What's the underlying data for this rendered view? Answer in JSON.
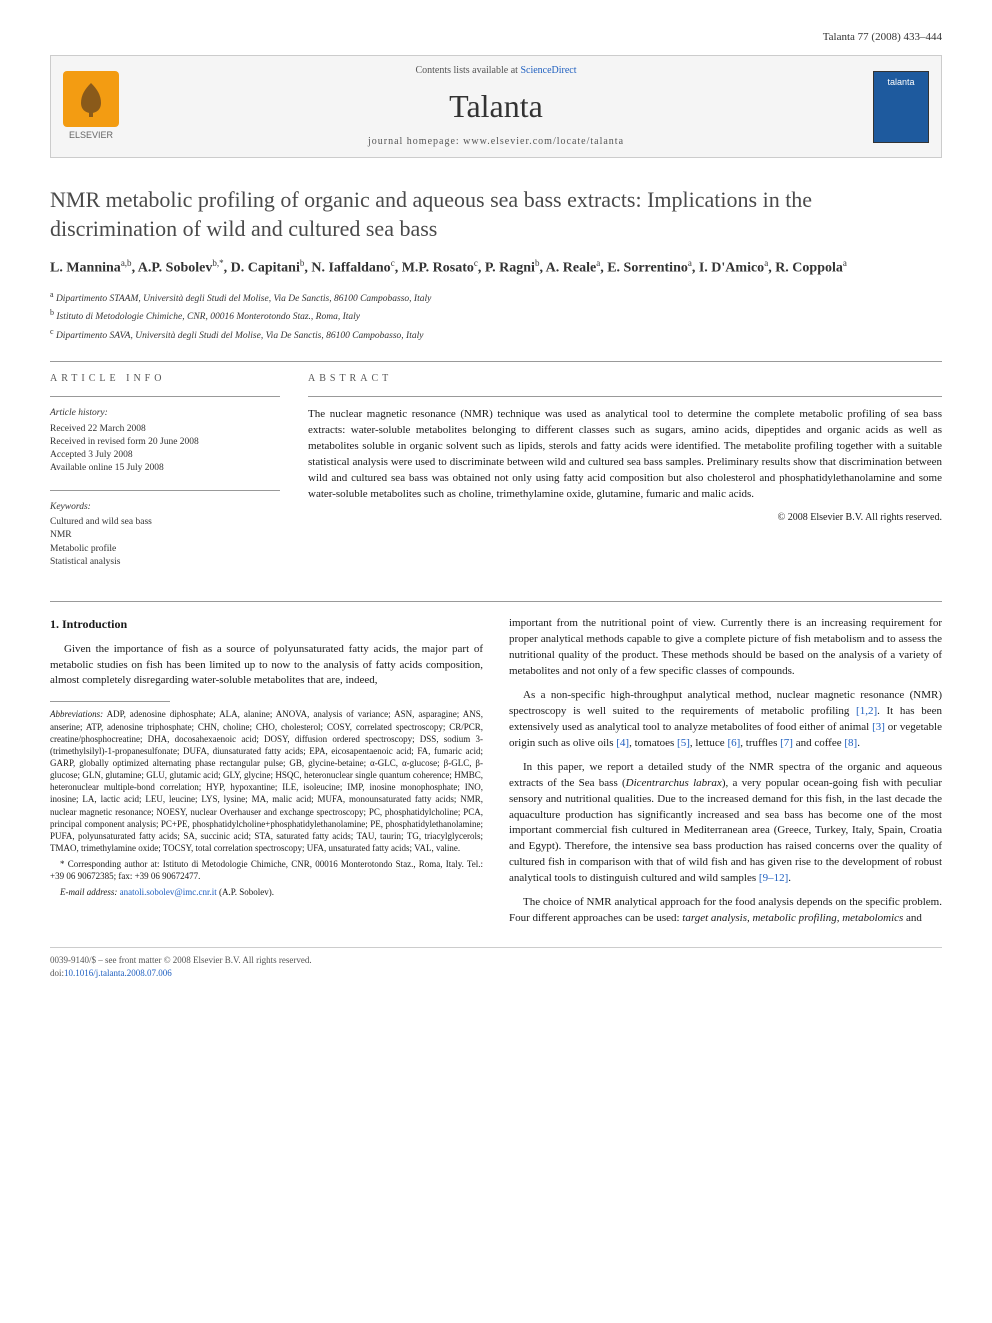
{
  "page_header": "Talanta 77 (2008) 433–444",
  "banner": {
    "publisher": "ELSEVIER",
    "contents_prefix": "Contents lists available at ",
    "contents_link": "ScienceDirect",
    "journal": "Talanta",
    "homepage_prefix": "journal homepage: ",
    "homepage": "www.elsevier.com/locate/talanta",
    "cover_label": "talanta"
  },
  "title": "NMR metabolic profiling of organic and aqueous sea bass extracts: Implications in the discrimination of wild and cultured sea bass",
  "authors_html": "L. Mannina<sup>a,b</sup>, A.P. Sobolev<sup>b,*</sup>, D. Capitani<sup>b</sup>, N. Iaffaldano<sup>c</sup>, M.P. Rosato<sup>c</sup>, P. Ragni<sup>b</sup>, A. Reale<sup>a</sup>, E. Sorrentino<sup>a</sup>, I. D'Amico<sup>a</sup>, R. Coppola<sup>a</sup>",
  "affiliations": [
    {
      "sup": "a",
      "text": "Dipartimento STAAM, Università degli Studi del Molise, Via De Sanctis, 86100 Campobasso, Italy"
    },
    {
      "sup": "b",
      "text": "Istituto di Metodologie Chimiche, CNR, 00016 Monterotondo Staz., Roma, Italy"
    },
    {
      "sup": "c",
      "text": "Dipartimento SAVA, Università degli Studi del Molise, Via De Sanctis, 86100 Campobasso, Italy"
    }
  ],
  "article_info": {
    "head": "ARTICLE INFO",
    "history_label": "Article history:",
    "history": [
      "Received 22 March 2008",
      "Received in revised form 20 June 2008",
      "Accepted 3 July 2008",
      "Available online 15 July 2008"
    ],
    "keywords_label": "Keywords:",
    "keywords": [
      "Cultured and wild sea bass",
      "NMR",
      "Metabolic profile",
      "Statistical analysis"
    ]
  },
  "abstract": {
    "head": "ABSTRACT",
    "text": "The nuclear magnetic resonance (NMR) technique was used as analytical tool to determine the complete metabolic profiling of sea bass extracts: water-soluble metabolites belonging to different classes such as sugars, amino acids, dipeptides and organic acids as well as metabolites soluble in organic solvent such as lipids, sterols and fatty acids were identified. The metabolite profiling together with a suitable statistical analysis were used to discriminate between wild and cultured sea bass samples. Preliminary results show that discrimination between wild and cultured sea bass was obtained not only using fatty acid composition but also cholesterol and phosphatidylethanolamine and some water-soluble metabolites such as choline, trimethylamine oxide, glutamine, fumaric and malic acids.",
    "copyright": "© 2008 Elsevier B.V. All rights reserved."
  },
  "body": {
    "intro_head": "1. Introduction",
    "p1": "Given the importance of fish as a source of polyunsaturated fatty acids, the major part of metabolic studies on fish has been limited up to now to the analysis of fatty acids composition, almost completely disregarding water-soluble metabolites that are, indeed,",
    "p2_a": "important from the nutritional point of view. Currently there is an increasing requirement for proper analytical methods capable to give a complete picture of fish metabolism and to assess the nutritional quality of the product. These methods should be based on the analysis of a variety of metabolites and not only of a few specific classes of compounds.",
    "p3_a": "As a non-specific high-throughput analytical method, nuclear magnetic resonance (NMR) spectroscopy is well suited to the requirements of metabolic profiling ",
    "p3_ref1": "[1,2]",
    "p3_b": ". It has been extensively used as analytical tool to analyze metabolites of food either of animal ",
    "p3_ref2": "[3]",
    "p3_c": " or vegetable origin such as olive oils ",
    "p3_ref3": "[4]",
    "p3_d": ", tomatoes ",
    "p3_ref4": "[5]",
    "p3_e": ", lettuce ",
    "p3_ref5": "[6]",
    "p3_f": ", truffles ",
    "p3_ref6": "[7]",
    "p3_g": " and coffee ",
    "p3_ref7": "[8]",
    "p3_h": ".",
    "p4_a": "In this paper, we report a detailed study of the NMR spectra of the organic and aqueous extracts of the Sea bass (",
    "p4_i": "Dicentrarchus labrax",
    "p4_b": "), a very popular ocean-going fish with peculiar sensory and nutritional qualities. Due to the increased demand for this fish, in the last decade the aquaculture production has significantly increased and sea bass has become one of the most important commercial fish cultured in Mediterranean area (Greece, Turkey, Italy, Spain, Croatia and Egypt). Therefore, the intensive sea bass production has raised concerns over the quality of cultured fish in comparison with that of wild fish and has given rise to the development of robust analytical tools to distinguish cultured and wild samples ",
    "p4_ref": "[9–12]",
    "p4_c": ".",
    "p5_a": "The choice of NMR analytical approach for the food analysis depends on the specific problem. Four different approaches can be used: ",
    "p5_i": "target analysis, metabolic profiling, metabolomics",
    "p5_b": " and"
  },
  "footnotes": {
    "abbrev_label": "Abbreviations:",
    "abbrev_text": " ADP, adenosine diphosphate; ALA, alanine; ANOVA, analysis of variance; ASN, asparagine; ANS, anserine; ATP, adenosine triphosphate; CHN, choline; CHO, cholesterol; COSY, correlated spectroscopy; CR/PCR, creatine/phosphocreatine; DHA, docosahexaenoic acid; DOSY, diffusion ordered spectroscopy; DSS, sodium 3-(trimethylsilyl)-1-propanesulfonate; DUFA, diunsaturated fatty acids; EPA, eicosapentaenoic acid; FA, fumaric acid; GARP, globally optimized alternating phase rectangular pulse; GB, glycine-betaine; α-GLC, α-glucose; β-GLC, β-glucose; GLN, glutamine; GLU, glutamic acid; GLY, glycine; HSQC, heteronuclear single quantum coherence; HMBC, heteronuclear multiple-bond correlation; HYP, hypoxantine; ILE, isoleucine; IMP, inosine monophosphate; INO, inosine; LA, lactic acid; LEU, leucine; LYS, lysine; MA, malic acid; MUFA, monounsaturated fatty acids; NMR, nuclear magnetic resonance; NOESY, nuclear Overhauser and exchange spectroscopy; PC, phosphatidylcholine; PCA, principal component analysis; PC+PE, phosphatidylcholine+phosphatidylethanolamine; PE, phosphatidylethanolamine; PUFA, polyunsaturated fatty acids; SA, succinic acid; STA, saturated fatty acids; TAU, taurin; TG, triacylglycerols; TMAO, trimethylamine oxide; TOCSY, total correlation spectroscopy; UFA, unsaturated fatty acids; VAL, valine.",
    "corr": "* Corresponding author at: Istituto di Metodologie Chimiche, CNR, 00016 Monterotondo Staz., Roma, Italy. Tel.: +39 06 90672385; fax: +39 06 90672477.",
    "email_label": "E-mail address: ",
    "email": "anatoli.sobolev@imc.cnr.it",
    "email_who": " (A.P. Sobolev)."
  },
  "footer": {
    "line1": "0039-9140/$ – see front matter © 2008 Elsevier B.V. All rights reserved.",
    "doi_label": "doi:",
    "doi": "10.1016/j.talanta.2008.07.006"
  },
  "colors": {
    "link": "#2060c0",
    "elsevier_bg": "#f39c12",
    "cover_bg": "#1e5a9e",
    "rule": "#999999",
    "banner_bg": "#f5f5f5"
  }
}
